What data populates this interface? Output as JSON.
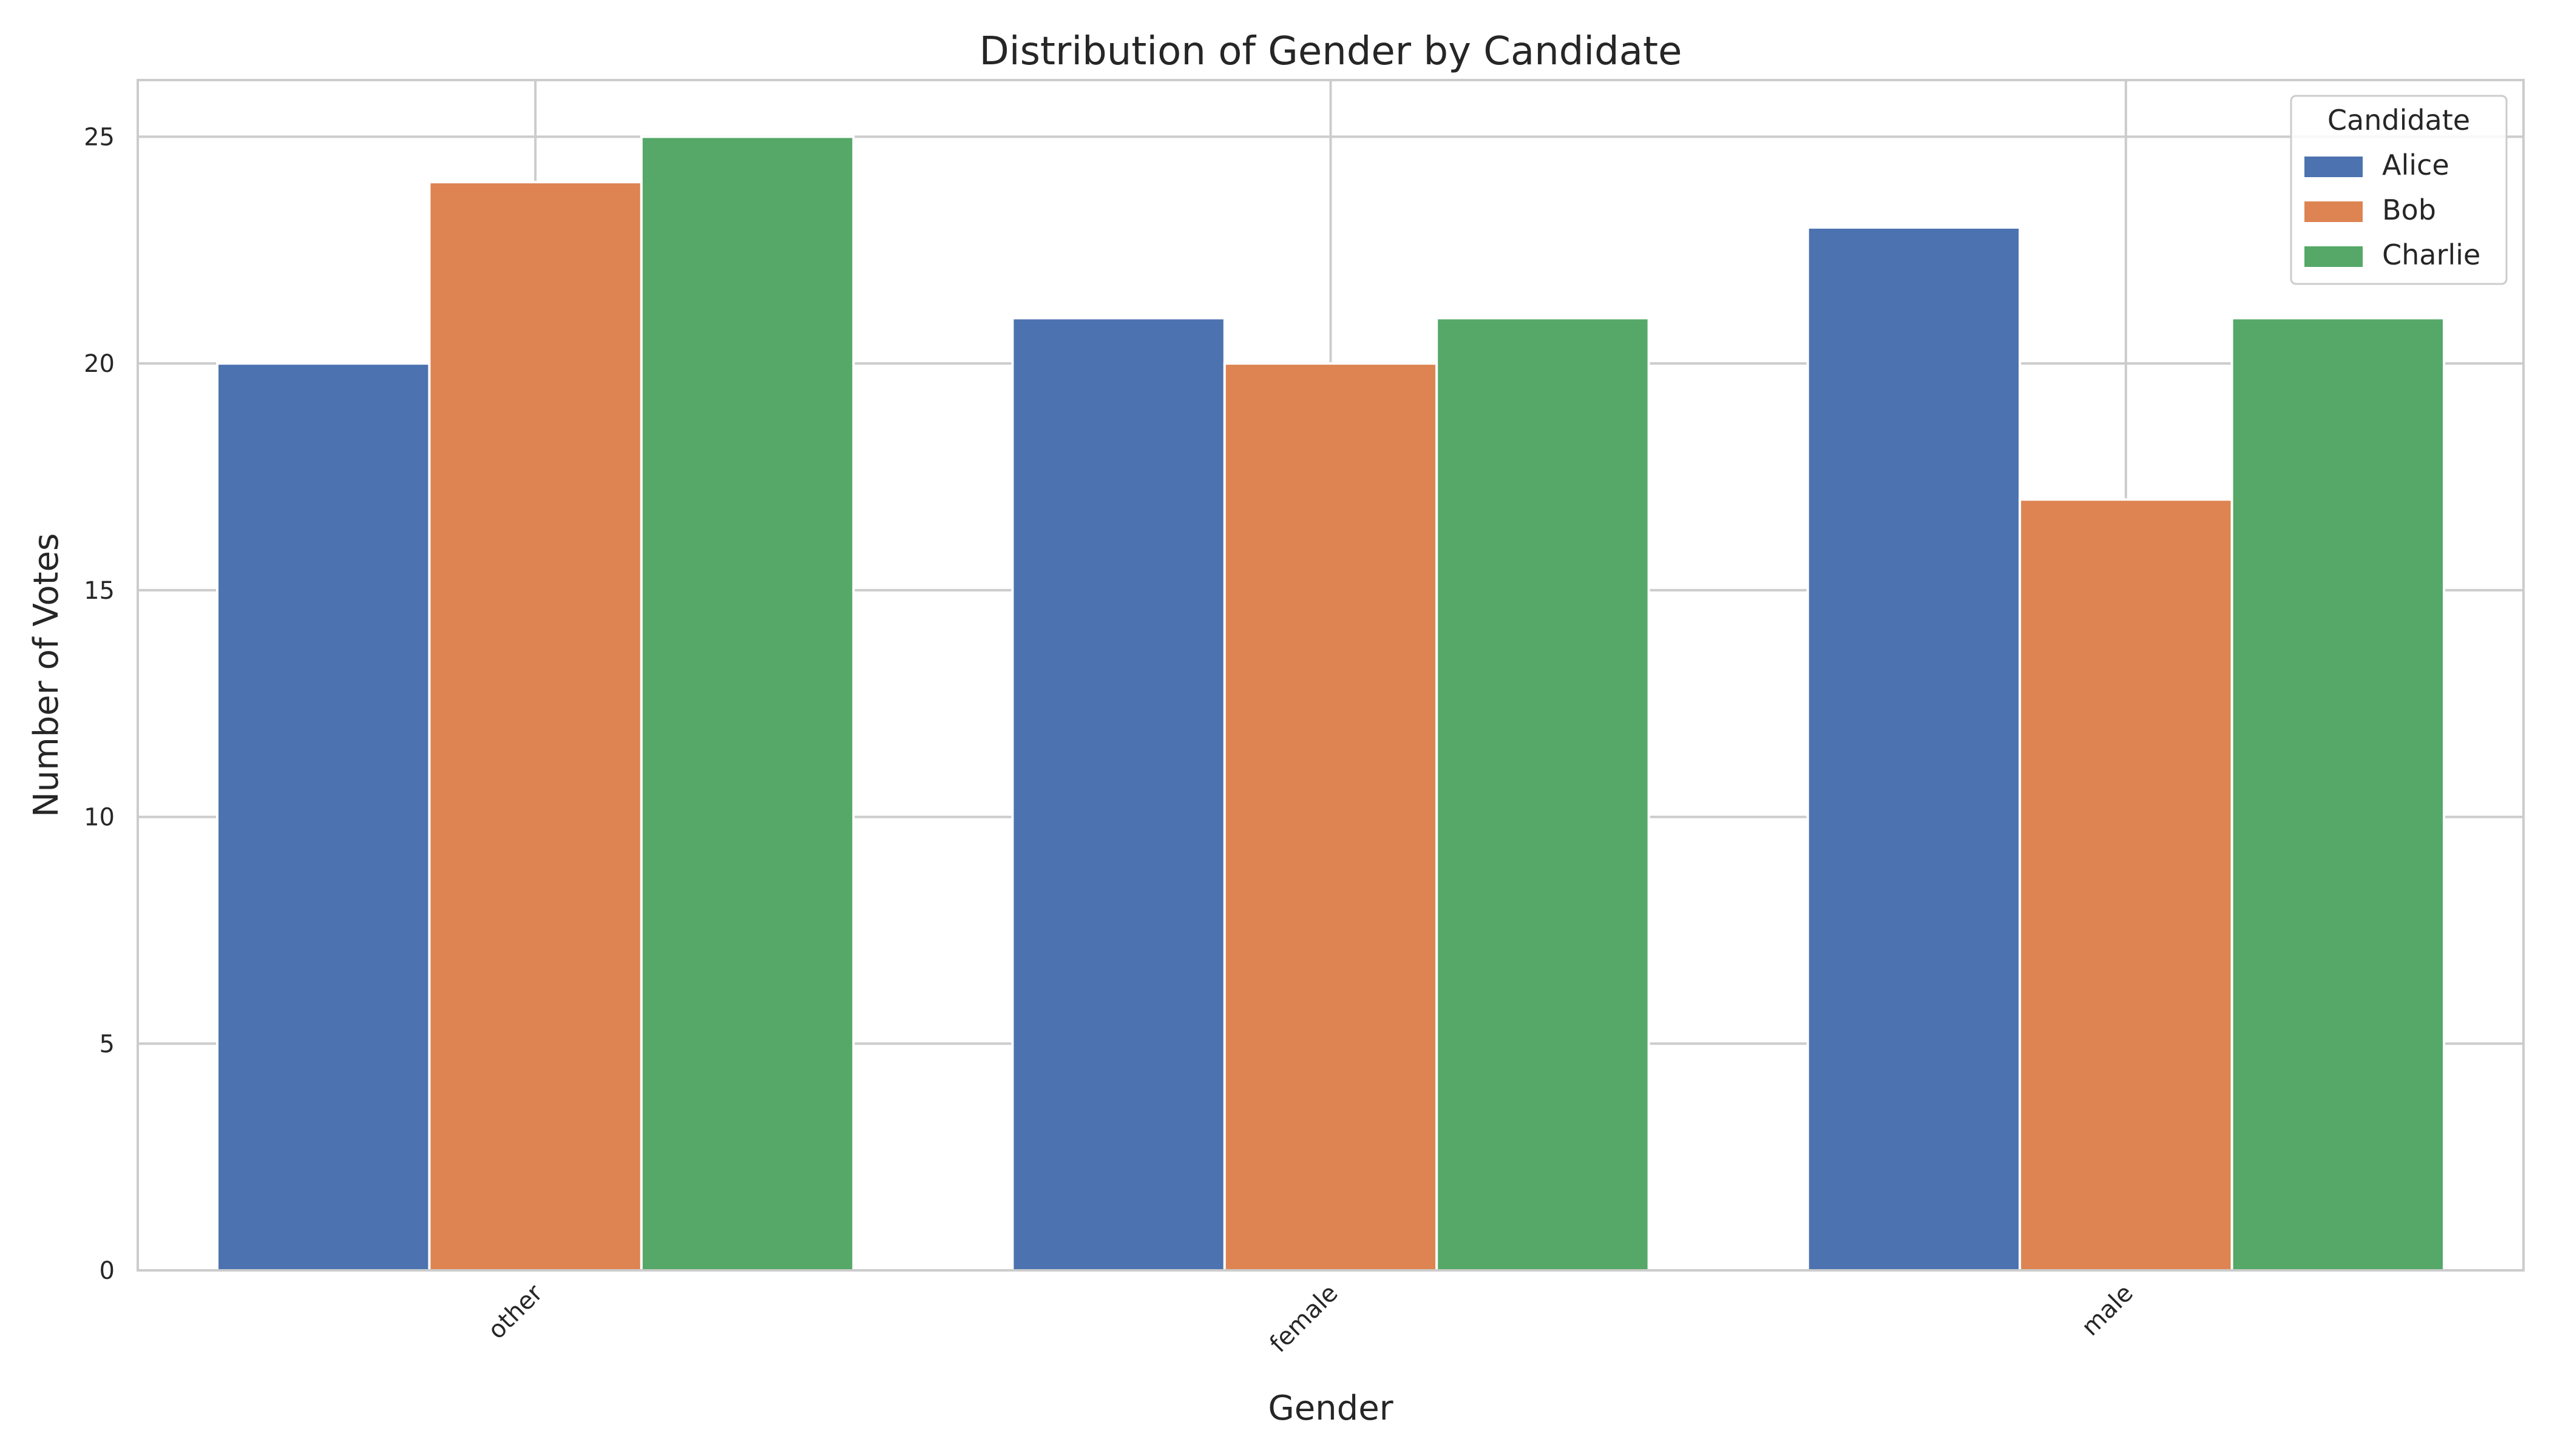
{
  "chart_data": {
    "type": "bar",
    "title": "Distribution of Gender by Candidate",
    "xlabel": "Gender",
    "ylabel": "Number of Votes",
    "categories": [
      "other",
      "female",
      "male"
    ],
    "series": [
      {
        "name": "Alice",
        "values": [
          20,
          21,
          23
        ],
        "color": "#4c72b0"
      },
      {
        "name": "Bob",
        "values": [
          24,
          20,
          17
        ],
        "color": "#dd8452"
      },
      {
        "name": "Charlie",
        "values": [
          25,
          21,
          21
        ],
        "color": "#55a868"
      }
    ],
    "ylim": [
      0,
      26.25
    ],
    "yticks": [
      0,
      5,
      10,
      15,
      20,
      25
    ],
    "grid": true,
    "legend": {
      "title": "Candidate",
      "position": "top-right"
    },
    "xtick_rotation": 45
  }
}
